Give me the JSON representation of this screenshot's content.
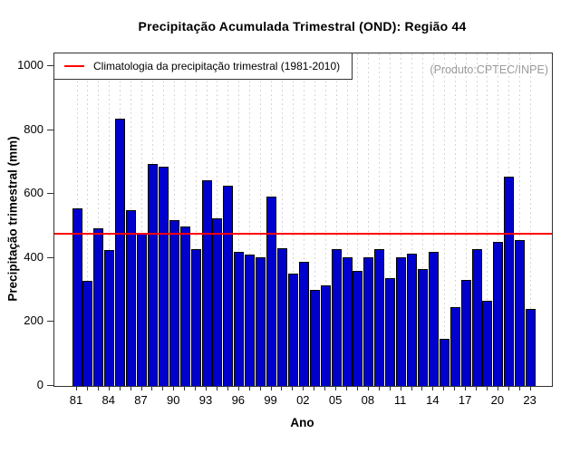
{
  "header": {
    "title": "Precipitação Acumulada Trimestral (OND): Região 44"
  },
  "legend": {
    "label": "Climatologia da precipitação trimestral (1981-2010)"
  },
  "watermark": "(Produto:CPTEC/INPE)",
  "axes": {
    "y_label": "Precipitação trimestral (mm)",
    "x_label": "Ano",
    "y_ticks": [
      0,
      200,
      400,
      600,
      800,
      1000
    ],
    "x_tick_labels": [
      "81",
      "84",
      "87",
      "90",
      "93",
      "96",
      "99",
      "02",
      "05",
      "08",
      "11",
      "14",
      "17",
      "20",
      "23"
    ]
  },
  "colors": {
    "bar_fill": "#0000CD",
    "bar_border": "#000000",
    "climatology_line": "#FF0000",
    "grid": "#D6D6D6",
    "box_border": "#333333",
    "watermark_text": "#9B9B9B"
  },
  "chart_data": {
    "type": "bar",
    "title": "Precipitação Acumulada Trimestral (OND): Região 44",
    "xlabel": "Ano",
    "ylabel": "Precipitação trimestral (mm)",
    "ylim": [
      0,
      1040
    ],
    "grid": "vertical-dotted",
    "legend_position": "top-left",
    "legend_entries": [
      "Climatologia da precipitação trimestral (1981-2010)"
    ],
    "categories": [
      "81",
      "82",
      "83",
      "84",
      "85",
      "86",
      "87",
      "88",
      "89",
      "90",
      "91",
      "92",
      "93",
      "94",
      "95",
      "96",
      "97",
      "98",
      "99",
      "00",
      "01",
      "02",
      "03",
      "04",
      "05",
      "06",
      "07",
      "08",
      "09",
      "10",
      "11",
      "12",
      "13",
      "14",
      "15",
      "16",
      "17",
      "18",
      "19",
      "20",
      "21",
      "22",
      "23"
    ],
    "values": [
      555,
      330,
      493,
      425,
      835,
      550,
      476,
      694,
      687,
      519,
      498,
      428,
      643,
      523,
      627,
      420,
      411,
      403,
      591,
      430,
      351,
      388,
      300,
      316,
      429,
      402,
      359,
      403,
      429,
      337,
      403,
      414,
      365,
      420,
      147,
      246,
      333,
      427,
      267,
      450,
      655,
      455,
      242
    ],
    "climatology_value": 475,
    "x_label_every": 3
  }
}
